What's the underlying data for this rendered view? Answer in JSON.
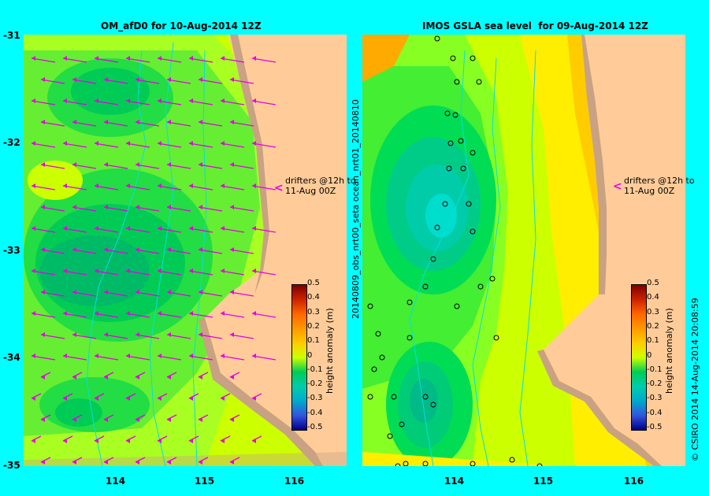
{
  "left": {
    "title": "OM_afD0 for 10-Aug-2014 12Z",
    "drifters": "drifters @12h to\n11-Aug 00Z"
  },
  "right": {
    "title": "IMOS GSLA sea level  for 09-Aug-2014 12Z",
    "drifters": "drifters @12h to\n11-Aug 00Z",
    "side_label": "20140809_obs_nrt00_seta          ocean_nrt01_20140810"
  },
  "y_ticks": [
    "-31",
    "-32",
    "-33",
    "-34",
    "-35"
  ],
  "x_ticks": [
    "114",
    "115",
    "116"
  ],
  "colorbar": {
    "label": "height anomaly (m)",
    "ticks": [
      "0.5",
      "0.4",
      "0.3",
      "0.2",
      "0.1",
      "0",
      "-0.1",
      "-0.2",
      "-0.3",
      "-0.4",
      "-0.5"
    ]
  },
  "credit": "© CSIRO 2014   14-Aug-2014 20:08:59",
  "colors": {
    "background": "#00ffff",
    "land": "#ffcc99",
    "coast_shelf": "#c8a282",
    "arrow": "#e600e6"
  }
}
